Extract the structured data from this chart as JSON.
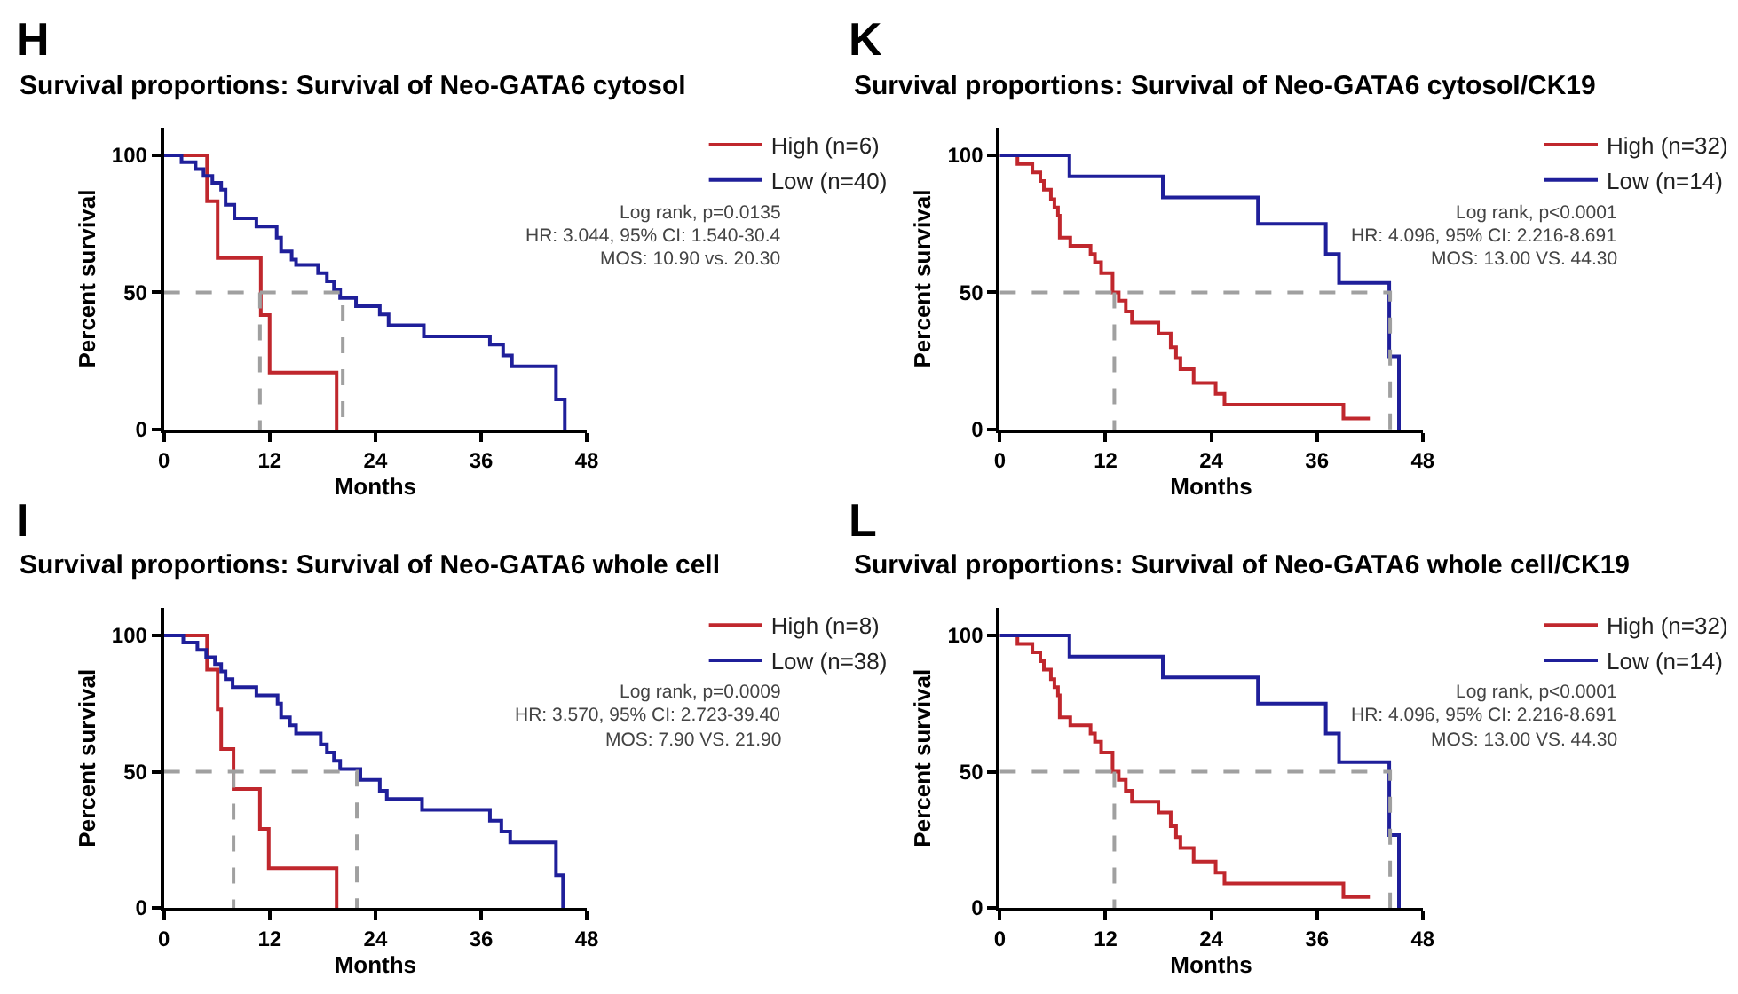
{
  "chart_data": [
    {
      "type": "step",
      "title": "Survival proportions: Survival of Neo-GATA6 cytosol",
      "xlabel": "Months",
      "ylabel": "Percent survival",
      "xlim": [
        0,
        48
      ],
      "xticks": [
        0,
        12,
        24,
        36,
        48
      ],
      "ylim": [
        0,
        110
      ],
      "yticks": [
        0,
        50,
        100
      ],
      "legend": "top right",
      "annotations": [
        "H",
        "Log rank, p=0.0135",
        "HR: 3.044, 95% CI: 1.540-30.4",
        "MOS: 10.90 vs. 20.30"
      ],
      "series": [
        {
          "name": "High (n=6)",
          "color": "#c0272d",
          "x": [
            0,
            4.9,
            6.1,
            11.0,
            12.0,
            19.6
          ],
          "values": [
            100,
            83.3,
            62.5,
            41.7,
            20.8,
            0
          ]
        },
        {
          "name": "Low (n=40)",
          "color": "#1f1f9a",
          "x": [
            0,
            2.0,
            3.6,
            4.5,
            5.5,
            6.5,
            7.0,
            8.0,
            10.5,
            12.8,
            13.3,
            14.5,
            15.0,
            17.5,
            18.5,
            19.3,
            20.0,
            21.8,
            24.5,
            25.5,
            29.5,
            37.0,
            38.5,
            39.5,
            44.5,
            45.5
          ],
          "values": [
            100,
            97.5,
            95,
            92.5,
            90,
            87.5,
            82,
            77,
            74,
            70,
            65,
            62,
            60,
            57,
            54,
            51,
            48,
            45,
            42,
            38,
            34,
            31,
            27,
            23,
            11,
            0
          ]
        },
        {
          "type": "line",
          "line_style": "dashed",
          "color": "#a0a0a0",
          "x": [
            0,
            20.3,
            20.3
          ],
          "values": [
            50,
            50,
            0
          ]
        },
        {
          "type": "line",
          "line_style": "dashed",
          "color": "#a0a0a0",
          "x": [
            10.9,
            10.9
          ],
          "values": [
            50,
            0
          ]
        }
      ]
    },
    {
      "type": "step",
      "title": "Survival proportions: Survival of Neo-GATA6 cytosol/CK19",
      "xlabel": "Months",
      "ylabel": "Percent survival",
      "xlim": [
        0,
        48
      ],
      "xticks": [
        0,
        12,
        24,
        36,
        48
      ],
      "ylim": [
        0,
        110
      ],
      "yticks": [
        0,
        50,
        100
      ],
      "legend": "top right",
      "annotations": [
        "K",
        "Log rank, p<0.0001",
        "HR: 4.096, 95% CI: 2.216-8.691",
        "MOS: 13.00 VS. 44.30"
      ],
      "series": [
        {
          "name": "High (n=32)",
          "color": "#c0272d",
          "x": [
            0,
            2.0,
            3.7,
            4.6,
            5.0,
            5.8,
            6.2,
            6.6,
            6.8,
            8.0,
            10.3,
            10.8,
            11.5,
            12.8,
            13.5,
            14.3,
            15.0,
            18.0,
            19.4,
            20.0,
            20.5,
            22.0,
            24.5,
            25.5,
            39.0,
            42.0
          ],
          "values": [
            100,
            96.9,
            93.8,
            90.6,
            87.5,
            84,
            81,
            78,
            70,
            67,
            64,
            61,
            57,
            50,
            47,
            43,
            39,
            35,
            30,
            26,
            22,
            17,
            13,
            9,
            4,
            4
          ]
        },
        {
          "name": "Low (n=14)",
          "color": "#1f1f9a",
          "x": [
            0,
            7.9,
            18.5,
            29.3,
            37.0,
            38.5,
            44.2,
            45.3
          ],
          "values": [
            100,
            92.3,
            84.6,
            75,
            64,
            53.5,
            26.7,
            0
          ]
        },
        {
          "type": "line",
          "line_style": "dashed",
          "color": "#a0a0a0",
          "x": [
            0,
            44.3,
            44.3
          ],
          "values": [
            50,
            50,
            0
          ]
        },
        {
          "type": "line",
          "line_style": "dashed",
          "color": "#a0a0a0",
          "x": [
            13.0,
            13.0
          ],
          "values": [
            50,
            0
          ]
        }
      ]
    },
    {
      "type": "step",
      "title": "Survival proportions: Survival of Neo-GATA6 whole cell",
      "xlabel": "Months",
      "ylabel": "Percent survival",
      "xlim": [
        0,
        48
      ],
      "xticks": [
        0,
        12,
        24,
        36,
        48
      ],
      "ylim": [
        0,
        110
      ],
      "yticks": [
        0,
        50,
        100
      ],
      "legend": "top right",
      "annotations": [
        "I",
        "Log rank, p=0.0009",
        "HR: 3.570, 95% CI: 2.723-39.40",
        "MOS: 7.90 VS. 21.90"
      ],
      "series": [
        {
          "name": "High (n=8)",
          "color": "#c0272d",
          "x": [
            0,
            4.9,
            6.1,
            6.5,
            7.9,
            10.9,
            11.9,
            19.6
          ],
          "values": [
            100,
            87.5,
            72.9,
            58.3,
            43.7,
            29,
            14.6,
            0
          ]
        },
        {
          "name": "Low (n=38)",
          "color": "#1f1f9a",
          "x": [
            0,
            2.2,
            3.8,
            4.8,
            5.8,
            6.5,
            7.0,
            7.8,
            10.5,
            12.9,
            13.3,
            14.3,
            15.0,
            17.8,
            18.5,
            19.3,
            20.0,
            22.3,
            24.5,
            25.3,
            29.3,
            37.0,
            38.3,
            39.3,
            44.5,
            45.3
          ],
          "values": [
            100,
            97.4,
            94.7,
            92,
            89.5,
            86.8,
            84,
            81,
            78,
            75,
            70,
            67,
            64,
            60,
            57,
            54,
            51,
            47,
            43,
            40,
            36,
            32,
            28,
            24,
            12,
            0
          ]
        },
        {
          "type": "line",
          "line_style": "dashed",
          "color": "#a0a0a0",
          "x": [
            0,
            21.9,
            21.9
          ],
          "values": [
            50,
            50,
            0
          ]
        },
        {
          "type": "line",
          "line_style": "dashed",
          "color": "#a0a0a0",
          "x": [
            7.9,
            7.9
          ],
          "values": [
            50,
            0
          ]
        }
      ]
    },
    {
      "type": "step",
      "title": "Survival proportions: Survival of Neo-GATA6 whole cell/CK19",
      "xlabel": "Months",
      "ylabel": "Percent survival",
      "xlim": [
        0,
        48
      ],
      "xticks": [
        0,
        12,
        24,
        36,
        48
      ],
      "ylim": [
        0,
        110
      ],
      "yticks": [
        0,
        50,
        100
      ],
      "legend": "top right",
      "annotations": [
        "L",
        "Log rank, p<0.0001",
        "HR: 4.096, 95% CI: 2.216-8.691",
        "MOS: 13.00 VS. 44.30"
      ],
      "series": [
        {
          "name": "High (n=32)",
          "color": "#c0272d",
          "x": [
            0,
            2.0,
            3.7,
            4.6,
            5.0,
            5.8,
            6.2,
            6.6,
            6.8,
            8.0,
            10.3,
            10.8,
            11.5,
            12.8,
            13.5,
            14.3,
            15.0,
            18.0,
            19.4,
            20.0,
            20.5,
            22.0,
            24.5,
            25.5,
            39.0,
            42.0
          ],
          "values": [
            100,
            96.9,
            93.8,
            90.6,
            87.5,
            84,
            81,
            78,
            70,
            67,
            64,
            61,
            57,
            50,
            47,
            43,
            39,
            35,
            30,
            26,
            22,
            17,
            13,
            9,
            4,
            4
          ]
        },
        {
          "name": "Low (n=14)",
          "color": "#1f1f9a",
          "x": [
            0,
            7.9,
            18.5,
            29.3,
            37.0,
            38.5,
            44.2,
            45.3
          ],
          "values": [
            100,
            92.3,
            84.6,
            75,
            64,
            53.5,
            26.7,
            0
          ]
        },
        {
          "type": "line",
          "line_style": "dashed",
          "color": "#a0a0a0",
          "x": [
            0,
            44.3,
            44.3
          ],
          "values": [
            50,
            50,
            0
          ]
        },
        {
          "type": "line",
          "line_style": "dashed",
          "color": "#a0a0a0",
          "x": [
            13.0,
            13.0
          ],
          "values": [
            50,
            0
          ]
        }
      ]
    }
  ]
}
